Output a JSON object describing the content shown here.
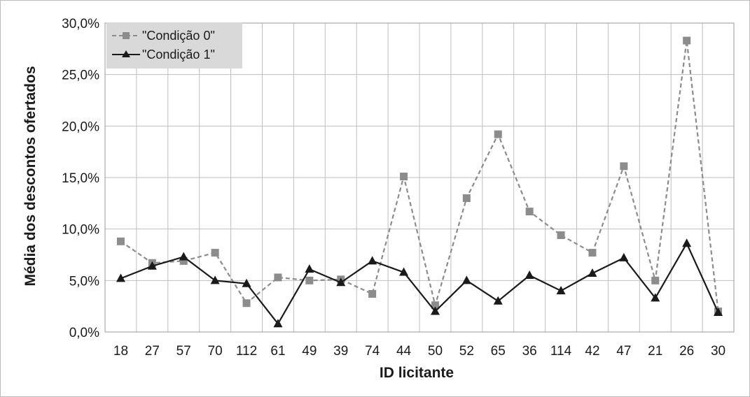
{
  "chart_data": {
    "type": "line",
    "title": "",
    "xlabel": "ID licitante",
    "ylabel": "Média dos descontos ofertados",
    "ylim": [
      0,
      30
    ],
    "yticks": [
      "0,0%",
      "5,0%",
      "10,0%",
      "15,0%",
      "20,0%",
      "25,0%",
      "30,0%"
    ],
    "categories": [
      "18",
      "27",
      "57",
      "70",
      "112",
      "61",
      "49",
      "39",
      "74",
      "44",
      "50",
      "52",
      "65",
      "36",
      "114",
      "42",
      "47",
      "21",
      "26",
      "30"
    ],
    "grid": true,
    "legend_position": "top-left",
    "series": [
      {
        "name": "\"Condição 0\"",
        "marker": "square",
        "line_style": "dashed",
        "color": "#8c8c8c",
        "values": [
          8.8,
          6.7,
          6.9,
          7.7,
          2.8,
          5.3,
          5.0,
          5.1,
          3.7,
          15.1,
          2.6,
          13.0,
          19.2,
          11.7,
          9.4,
          7.7,
          16.1,
          5.0,
          28.3,
          2.0
        ]
      },
      {
        "name": "\"Condição 1\"",
        "marker": "triangle",
        "line_style": "solid",
        "color": "#1a1a1a",
        "values": [
          5.2,
          6.4,
          7.3,
          5.0,
          4.7,
          0.8,
          6.1,
          4.8,
          6.9,
          5.8,
          2.0,
          5.0,
          3.0,
          5.5,
          4.0,
          5.7,
          7.2,
          3.3,
          8.6,
          1.9
        ]
      }
    ]
  }
}
